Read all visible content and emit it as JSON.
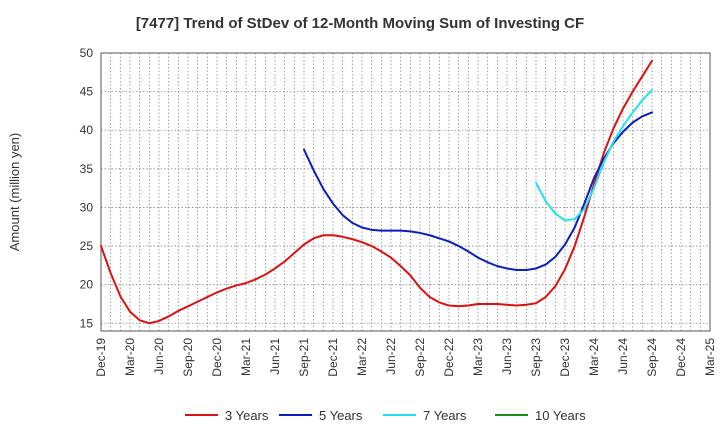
{
  "chart_data": {
    "type": "line",
    "title": "[7477]  Trend of StDev of 12-Month Moving Sum of Investing CF",
    "ylabel": "Amount (million yen)",
    "xlabel": "",
    "ylim": [
      14,
      50
    ],
    "yticks": [
      15,
      20,
      25,
      30,
      35,
      40,
      45,
      50
    ],
    "x_tick_labels": [
      "Dec-19",
      "Mar-20",
      "Jun-20",
      "Sep-20",
      "Dec-20",
      "Mar-21",
      "Jun-21",
      "Sep-21",
      "Dec-21",
      "Mar-22",
      "Jun-22",
      "Sep-22",
      "Dec-22",
      "Mar-23",
      "Jun-23",
      "Sep-23",
      "Dec-23",
      "Mar-24",
      "Jun-24",
      "Sep-24",
      "Dec-24",
      "Mar-25"
    ],
    "grid": true,
    "legend_position": "bottom",
    "series": [
      {
        "name": "3 Years",
        "color": "#dd1111",
        "values": [
          [
            "Dec-19",
            25.0
          ],
          [
            "Jan-20",
            21.5
          ],
          [
            "Feb-20",
            18.5
          ],
          [
            "Mar-20",
            16.5
          ],
          [
            "Apr-20",
            15.4
          ],
          [
            "May-20",
            15.0
          ],
          [
            "Jun-20",
            15.3
          ],
          [
            "Jul-20",
            15.9
          ],
          [
            "Aug-20",
            16.6
          ],
          [
            "Sep-20",
            17.2
          ],
          [
            "Oct-20",
            17.8
          ],
          [
            "Nov-20",
            18.4
          ],
          [
            "Dec-20",
            19.0
          ],
          [
            "Jan-21",
            19.5
          ],
          [
            "Feb-21",
            19.9
          ],
          [
            "Mar-21",
            20.2
          ],
          [
            "Apr-21",
            20.7
          ],
          [
            "May-21",
            21.3
          ],
          [
            "Jun-21",
            22.1
          ],
          [
            "Jul-21",
            23.0
          ],
          [
            "Aug-21",
            24.1
          ],
          [
            "Sep-21",
            25.2
          ],
          [
            "Oct-21",
            26.0
          ],
          [
            "Nov-21",
            26.4
          ],
          [
            "Dec-21",
            26.4
          ],
          [
            "Jan-22",
            26.2
          ],
          [
            "Feb-22",
            25.9
          ],
          [
            "Mar-22",
            25.5
          ],
          [
            "Apr-22",
            25.0
          ],
          [
            "May-22",
            24.3
          ],
          [
            "Jun-22",
            23.5
          ],
          [
            "Jul-22",
            22.4
          ],
          [
            "Aug-22",
            21.2
          ],
          [
            "Sep-22",
            19.6
          ],
          [
            "Oct-22",
            18.4
          ],
          [
            "Nov-22",
            17.7
          ],
          [
            "Dec-22",
            17.3
          ],
          [
            "Jan-23",
            17.2
          ],
          [
            "Feb-23",
            17.3
          ],
          [
            "Mar-23",
            17.5
          ],
          [
            "Apr-23",
            17.5
          ],
          [
            "May-23",
            17.5
          ],
          [
            "Jun-23",
            17.4
          ],
          [
            "Jul-23",
            17.3
          ],
          [
            "Aug-23",
            17.4
          ],
          [
            "Sep-23",
            17.6
          ],
          [
            "Oct-23",
            18.4
          ],
          [
            "Nov-23",
            19.8
          ],
          [
            "Dec-23",
            22.0
          ],
          [
            "Jan-24",
            25.0
          ],
          [
            "Feb-24",
            28.8
          ],
          [
            "Mar-24",
            33.0
          ],
          [
            "Apr-24",
            37.0
          ],
          [
            "May-24",
            40.2
          ],
          [
            "Jun-24",
            42.8
          ],
          [
            "Jul-24",
            45.0
          ],
          [
            "Aug-24",
            47.0
          ],
          [
            "Sep-24",
            49.0
          ]
        ]
      },
      {
        "name": "5 Years",
        "color": "#0a1fbf",
        "values": [
          [
            "Sep-21",
            37.5
          ],
          [
            "Oct-21",
            34.8
          ],
          [
            "Nov-21",
            32.4
          ],
          [
            "Dec-21",
            30.5
          ],
          [
            "Jan-22",
            29.0
          ],
          [
            "Feb-22",
            28.0
          ],
          [
            "Mar-22",
            27.4
          ],
          [
            "Apr-22",
            27.1
          ],
          [
            "May-22",
            27.0
          ],
          [
            "Jun-22",
            27.0
          ],
          [
            "Jul-22",
            27.0
          ],
          [
            "Aug-22",
            26.9
          ],
          [
            "Sep-22",
            26.7
          ],
          [
            "Oct-22",
            26.4
          ],
          [
            "Nov-22",
            26.0
          ],
          [
            "Dec-22",
            25.6
          ],
          [
            "Jan-23",
            25.0
          ],
          [
            "Feb-23",
            24.3
          ],
          [
            "Mar-23",
            23.5
          ],
          [
            "Apr-23",
            22.9
          ],
          [
            "May-23",
            22.4
          ],
          [
            "Jun-23",
            22.1
          ],
          [
            "Jul-23",
            21.9
          ],
          [
            "Aug-23",
            21.9
          ],
          [
            "Sep-23",
            22.1
          ],
          [
            "Oct-23",
            22.6
          ],
          [
            "Nov-23",
            23.6
          ],
          [
            "Dec-23",
            25.2
          ],
          [
            "Jan-24",
            27.4
          ],
          [
            "Feb-24",
            30.5
          ],
          [
            "Mar-24",
            33.8
          ],
          [
            "Apr-24",
            36.3
          ],
          [
            "May-24",
            38.3
          ],
          [
            "Jun-24",
            39.8
          ],
          [
            "Jul-24",
            41.0
          ],
          [
            "Aug-24",
            41.8
          ],
          [
            "Sep-24",
            42.3
          ]
        ]
      },
      {
        "name": "7 Years",
        "color": "#22e0ee",
        "values": [
          [
            "Sep-23",
            33.2
          ],
          [
            "Oct-23",
            30.8
          ],
          [
            "Nov-23",
            29.2
          ],
          [
            "Dec-23",
            28.3
          ],
          [
            "Jan-24",
            28.5
          ],
          [
            "Feb-24",
            29.8
          ],
          [
            "Mar-24",
            32.5
          ],
          [
            "Apr-24",
            35.8
          ],
          [
            "May-24",
            38.5
          ],
          [
            "Jun-24",
            40.5
          ],
          [
            "Jul-24",
            42.3
          ],
          [
            "Aug-24",
            43.9
          ],
          [
            "Sep-24",
            45.2
          ]
        ]
      },
      {
        "name": "10 Years",
        "color": "#1a8c1a",
        "values": []
      }
    ]
  }
}
